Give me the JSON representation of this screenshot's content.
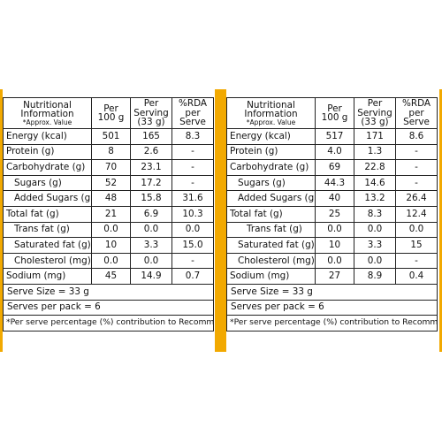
{
  "colors": {
    "accent": "#f2a900",
    "border": "#222222",
    "text": "#111111"
  },
  "headers": {
    "c1_line1": "Nutritional",
    "c1_line2": "Information",
    "c1_sub": "*Approx. Value",
    "c2_line1": "Per",
    "c2_line2": "100 g",
    "c3_line1": "Per",
    "c3_line2": "Serving",
    "c3_line3": "(33 g)",
    "c4_line1": "%RDA",
    "c4_line2": "per",
    "c4_line3": "Serve"
  },
  "left": {
    "rows": [
      {
        "label": "Energy (kcal)",
        "per100": "501",
        "serving": "165",
        "rda": "8.3"
      },
      {
        "label": "Protein (g)",
        "per100": "8",
        "serving": "2.6",
        "rda": "-"
      },
      {
        "label": "Carbohydrate (g)",
        "per100": "70",
        "serving": "23.1",
        "rda": "-"
      },
      {
        "label": "Sugars (g)",
        "per100": "52",
        "serving": "17.2",
        "rda": "-"
      },
      {
        "label": "Added Sugars (g)",
        "per100": "48",
        "serving": "15.8",
        "rda": "31.6"
      },
      {
        "label": "Total fat (g)",
        "per100": "21",
        "serving": "6.9",
        "rda": "10.3"
      },
      {
        "label": "Trans fat (g)",
        "per100": "0.0",
        "serving": "0.0",
        "rda": "0.0"
      },
      {
        "label": "Saturated fat (g)",
        "per100": "10",
        "serving": "3.3",
        "rda": "15.0"
      },
      {
        "label": "Cholesterol (mg)",
        "per100": "0.0",
        "serving": "0.0",
        "rda": "-"
      },
      {
        "label": "Sodium (mg)",
        "per100": "45",
        "serving": "14.9",
        "rda": "0.7"
      }
    ],
    "serve_size": "Serve Size = 33 g",
    "serves_per_pack": "Serves per pack = 6",
    "footnote": "*Per serve percentage (%) contribution to Recommended Dietary Allowance calculated on the basis of 2000 Kcal for average adult per day."
  },
  "right": {
    "rows": [
      {
        "label": "Energy (kcal)",
        "per100": "517",
        "serving": "171",
        "rda": "8.6"
      },
      {
        "label": "Protein (g)",
        "per100": "4.0",
        "serving": "1.3",
        "rda": "-"
      },
      {
        "label": "Carbohydrate (g)",
        "per100": "69",
        "serving": "22.8",
        "rda": "-"
      },
      {
        "label": "Sugars (g)",
        "per100": "44.3",
        "serving": "14.6",
        "rda": "-"
      },
      {
        "label": "Added Sugars (g)",
        "per100": "40",
        "serving": "13.2",
        "rda": "26.4"
      },
      {
        "label": "Total fat (g)",
        "per100": "25",
        "serving": "8.3",
        "rda": "12.4"
      },
      {
        "label": "Trans fat (g)",
        "per100": "0.0",
        "serving": "0.0",
        "rda": "0.0"
      },
      {
        "label": "Saturated fat (g)",
        "per100": "10",
        "serving": "3.3",
        "rda": "15"
      },
      {
        "label": "Cholesterol (mg)",
        "per100": "0.0",
        "serving": "0.0",
        "rda": "-"
      },
      {
        "label": "Sodium (mg)",
        "per100": "27",
        "serving": "8.9",
        "rda": "0.4"
      }
    ],
    "serve_size": "Serve Size = 33 g",
    "serves_per_pack": "Serves per pack = 6",
    "footnote": "*Per serve percentage (%) contribution to Recommended Dietary Allowance calculated on the basis of 2000 Kcal for average adult per day."
  }
}
